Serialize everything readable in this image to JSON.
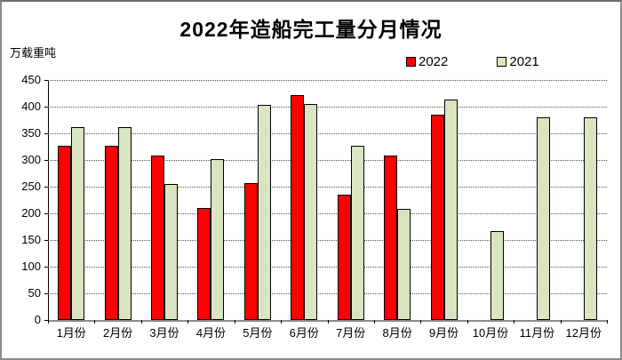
{
  "chart_data": {
    "type": "bar",
    "title": "2022年造船完工量分月情况",
    "unit_label": "万载重吨",
    "categories": [
      "1月份",
      "2月份",
      "3月份",
      "4月份",
      "5月份",
      "6月份",
      "7月份",
      "8月份",
      "9月份",
      "10月份",
      "11月份",
      "12月份"
    ],
    "series": [
      {
        "name": "2022",
        "color": "#ff0000",
        "values": [
          327,
          327,
          309,
          210,
          256,
          421,
          235,
          309,
          385,
          null,
          null,
          null
        ]
      },
      {
        "name": "2021",
        "color": "#d9e5c0",
        "values": [
          361,
          361,
          255,
          302,
          404,
          405,
          326,
          208,
          413,
          166,
          380,
          380
        ]
      }
    ],
    "ylim": [
      0,
      450
    ],
    "ytick_step": 50,
    "yticks": [
      0,
      50,
      100,
      150,
      200,
      250,
      300,
      350,
      400,
      450
    ],
    "grid": "dotted-horizontal",
    "legend_position": "top-right",
    "xlabel": "",
    "ylabel": "万载重吨"
  }
}
